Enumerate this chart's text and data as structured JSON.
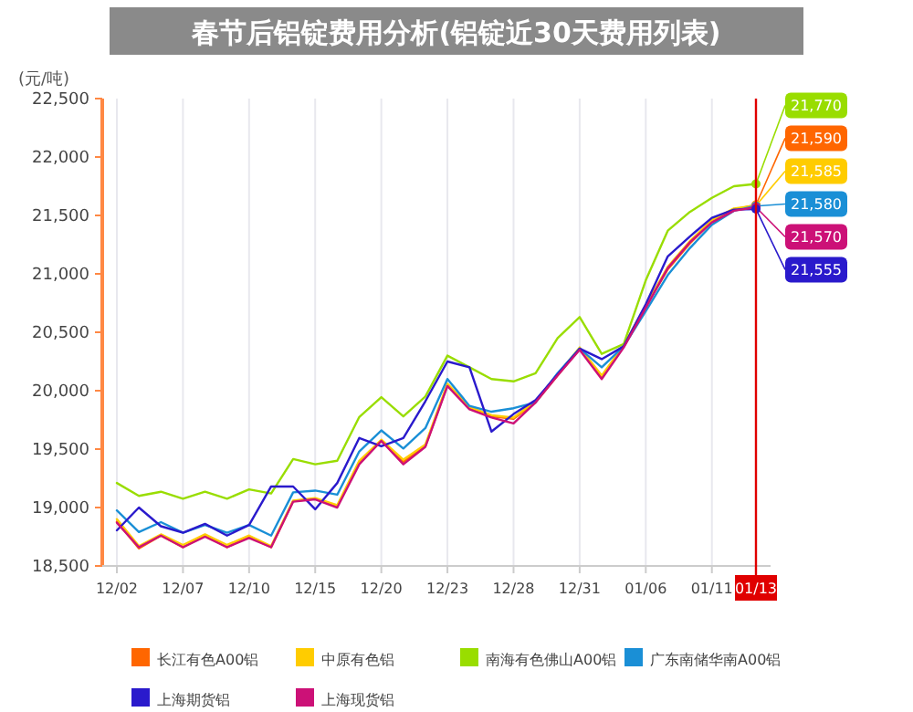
{
  "chart_data": {
    "type": "line",
    "title": "春节后铝锭费用分析(铝锭近30天费用列表)",
    "ylabel": "(元/吨)",
    "categories": [
      "12/02",
      null,
      null,
      "12/07",
      null,
      null,
      "12/10",
      null,
      null,
      "12/15",
      null,
      null,
      "12/20",
      null,
      null,
      "12/23",
      null,
      null,
      "12/28",
      null,
      null,
      "12/31",
      null,
      null,
      "01/06",
      null,
      null,
      "01/11",
      null,
      "01/13"
    ],
    "ylim": [
      18500,
      22500
    ],
    "yticks": [
      {
        "value": 18500,
        "label": "18,500"
      },
      {
        "value": 19000,
        "label": "19,000"
      },
      {
        "value": 19500,
        "label": "19,500"
      },
      {
        "value": 20000,
        "label": "20,000"
      },
      {
        "value": 20500,
        "label": "20,500"
      },
      {
        "value": 21000,
        "label": "21,000"
      },
      {
        "value": 21500,
        "label": "21,500"
      },
      {
        "value": 22000,
        "label": "22,000"
      },
      {
        "value": 22500,
        "label": "22,500"
      }
    ],
    "grid": "x",
    "legend": "bottom",
    "marker": "none",
    "line_style": "solid",
    "ref_lines": [
      {
        "axis": "x",
        "value": "01/13",
        "color": "#e00000"
      }
    ],
    "series": [
      {
        "name": "长江有色A00铝",
        "color": "#ff6600",
        "values": [
          18880,
          18650,
          18760,
          18660,
          18760,
          18660,
          18750,
          18660,
          19055,
          19075,
          19010,
          19390,
          19570,
          19390,
          19525,
          20050,
          19850,
          19780,
          19760,
          19900,
          20130,
          20360,
          20110,
          20380,
          20720,
          21040,
          21260,
          21450,
          21550,
          21590
        ],
        "value_labels": [
          null,
          null,
          null,
          null,
          null,
          null,
          null,
          null,
          null,
          null,
          null,
          null,
          null,
          null,
          null,
          null,
          null,
          null,
          null,
          null,
          null,
          null,
          null,
          null,
          null,
          null,
          null,
          null,
          null,
          "21,590"
        ]
      },
      {
        "name": "中原有色铝",
        "color": "#ffcc00",
        "values": [
          18900,
          18670,
          18770,
          18680,
          18770,
          18680,
          18760,
          18670,
          19060,
          19080,
          19020,
          19400,
          19580,
          19410,
          19540,
          20060,
          19860,
          19790,
          19770,
          19910,
          20140,
          20370,
          20130,
          20390,
          20730,
          21060,
          21280,
          21460,
          21560,
          21585
        ],
        "value_labels": [
          null,
          null,
          null,
          null,
          null,
          null,
          null,
          null,
          null,
          null,
          null,
          null,
          null,
          null,
          null,
          null,
          null,
          null,
          null,
          null,
          null,
          null,
          null,
          null,
          null,
          null,
          null,
          null,
          null,
          "21,585"
        ]
      },
      {
        "name": "南海有色佛山A00铝",
        "color": "#99dd00",
        "values": [
          19210,
          19100,
          19135,
          19075,
          19135,
          19075,
          19155,
          19120,
          19415,
          19370,
          19400,
          19775,
          19945,
          19780,
          19950,
          20300,
          20200,
          20100,
          20080,
          20150,
          20450,
          20630,
          20315,
          20400,
          20945,
          21370,
          21530,
          21650,
          21750,
          21770
        ],
        "value_labels": [
          null,
          null,
          null,
          null,
          null,
          null,
          null,
          null,
          null,
          null,
          null,
          null,
          null,
          null,
          null,
          null,
          null,
          null,
          null,
          null,
          null,
          null,
          null,
          null,
          null,
          null,
          null,
          null,
          null,
          "21,770"
        ]
      },
      {
        "name": "广东南储华南A00铝",
        "color": "#1a8fd6",
        "values": [
          18975,
          18790,
          18875,
          18785,
          18850,
          18785,
          18850,
          18760,
          19130,
          19145,
          19110,
          19480,
          19660,
          19505,
          19680,
          20100,
          19870,
          19820,
          19850,
          19900,
          20150,
          20360,
          20200,
          20380,
          20680,
          20990,
          21220,
          21420,
          21540,
          21580
        ],
        "value_labels": [
          null,
          null,
          null,
          null,
          null,
          null,
          null,
          null,
          null,
          null,
          null,
          null,
          null,
          null,
          null,
          null,
          null,
          null,
          null,
          null,
          null,
          null,
          null,
          null,
          null,
          null,
          null,
          null,
          null,
          "21,580"
        ]
      },
      {
        "name": "上海期货铝",
        "color": "#2a1acc",
        "values": [
          18805,
          19000,
          18840,
          18785,
          18860,
          18760,
          18850,
          19180,
          19180,
          18985,
          19210,
          19595,
          19525,
          19595,
          19910,
          20250,
          20200,
          19650,
          19800,
          19920,
          20140,
          20360,
          20270,
          20380,
          20740,
          21150,
          21320,
          21480,
          21550,
          21555
        ],
        "value_labels": [
          null,
          null,
          null,
          null,
          null,
          null,
          null,
          null,
          null,
          null,
          null,
          null,
          null,
          null,
          null,
          null,
          null,
          null,
          null,
          null,
          null,
          null,
          null,
          null,
          null,
          null,
          null,
          null,
          null,
          "21,555"
        ]
      },
      {
        "name": "上海现货铝",
        "color": "#cc1177",
        "values": [
          18870,
          18660,
          18760,
          18660,
          18750,
          18660,
          18740,
          18660,
          19050,
          19070,
          19000,
          19370,
          19570,
          19370,
          19520,
          20040,
          19840,
          19770,
          19720,
          19900,
          20130,
          20350,
          20100,
          20370,
          20710,
          21050,
          21270,
          21440,
          21540,
          21570
        ],
        "value_labels": [
          null,
          null,
          null,
          null,
          null,
          null,
          null,
          null,
          null,
          null,
          null,
          null,
          null,
          null,
          null,
          null,
          null,
          null,
          null,
          null,
          null,
          null,
          null,
          null,
          null,
          null,
          null,
          null,
          null,
          "21,570"
        ]
      }
    ]
  }
}
